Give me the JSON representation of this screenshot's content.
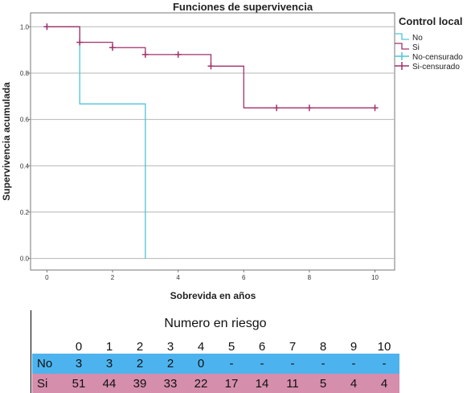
{
  "chart_data": {
    "type": "line",
    "subtype": "kaplan-meier step",
    "title": "Funciones de supervivencia",
    "xlabel": "Sobrevida en años",
    "ylabel": "Supervivencia acumulada",
    "xlim": [
      -0.5,
      10.6
    ],
    "ylim": [
      -0.05,
      1.06
    ],
    "x_ticks": [
      "0",
      "2",
      "4",
      "6",
      "8",
      "10"
    ],
    "y_ticks": [
      "0.0",
      "0.2",
      "0.4",
      "0.6",
      "0.8",
      "1.0"
    ],
    "grid": "horizontal lines at y ticks",
    "legend": {
      "title": "Control local",
      "placement": "top-right outside plot",
      "entries": [
        "No",
        "Si",
        "No-censurado",
        "Si-censurado"
      ]
    },
    "series": [
      {
        "name": "No",
        "color": "#4fc3d9",
        "steps": [
          [
            0,
            1.0
          ],
          [
            1,
            0.667
          ],
          [
            3,
            0.0
          ]
        ],
        "x_end": 3,
        "censored": [
          [
            0,
            1.0
          ]
        ]
      },
      {
        "name": "Si",
        "color": "#a0306a",
        "steps": [
          [
            0,
            1.0
          ],
          [
            1,
            0.933
          ],
          [
            2,
            0.91
          ],
          [
            3,
            0.88
          ],
          [
            5,
            0.83
          ],
          [
            6,
            0.65
          ]
        ],
        "x_end": 10,
        "censored": [
          [
            0,
            1.0
          ],
          [
            1,
            0.933
          ],
          [
            2,
            0.91
          ],
          [
            3,
            0.88
          ],
          [
            4,
            0.88
          ],
          [
            5,
            0.83
          ],
          [
            7,
            0.65
          ],
          [
            8,
            0.65
          ],
          [
            10,
            0.65
          ]
        ]
      }
    ]
  },
  "risk_table": {
    "title": "Numero en riesgo",
    "times": [
      "0",
      "1",
      "2",
      "3",
      "4",
      "5",
      "6",
      "7",
      "8",
      "9",
      "10"
    ],
    "rows": [
      {
        "label": "No",
        "color": "#4db3ee",
        "values": [
          "3",
          "3",
          "2",
          "2",
          "0",
          "-",
          "-",
          "-",
          "-",
          "-",
          "-"
        ]
      },
      {
        "label": "Si",
        "color": "#d58eac",
        "values": [
          "51",
          "44",
          "39",
          "33",
          "22",
          "17",
          "14",
          "11",
          "5",
          "4",
          "4"
        ]
      }
    ]
  }
}
